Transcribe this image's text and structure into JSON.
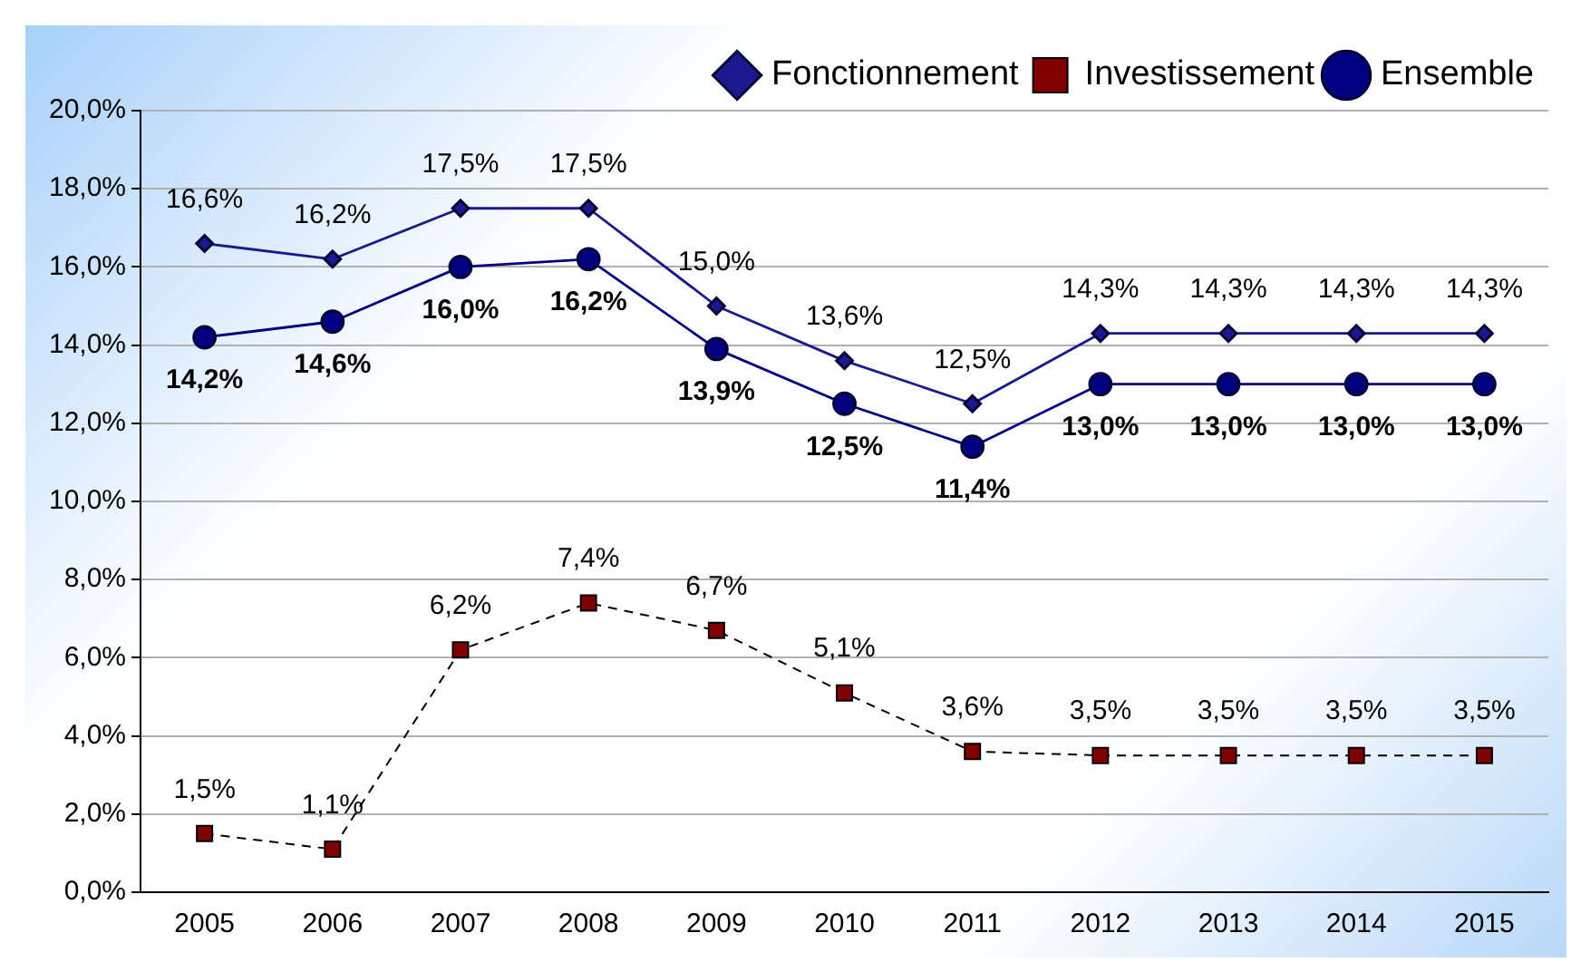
{
  "chart_data": {
    "type": "line",
    "categories": [
      "2005",
      "2006",
      "2007",
      "2008",
      "2009",
      "2010",
      "2011",
      "2012",
      "2013",
      "2014",
      "2015"
    ],
    "ylim": [
      0,
      20
    ],
    "yticks": [
      {
        "value": 0,
        "label": "0,0%"
      },
      {
        "value": 2,
        "label": "2,0%"
      },
      {
        "value": 4,
        "label": "4,0%"
      },
      {
        "value": 6,
        "label": "6,0%"
      },
      {
        "value": 8,
        "label": "8,0%"
      },
      {
        "value": 10,
        "label": "10,0%"
      },
      {
        "value": 12,
        "label": "12,0%"
      },
      {
        "value": 14,
        "label": "14,0%"
      },
      {
        "value": 16,
        "label": "16,0%"
      },
      {
        "value": 18,
        "label": "18,0%"
      },
      {
        "value": 20,
        "label": "20,0%"
      }
    ],
    "grid": "y",
    "legend": "top right",
    "series": [
      {
        "name": "Fonctionnement",
        "color": "#1a1a8c",
        "marker": "diamond",
        "line_style": "solid",
        "values": [
          16.6,
          16.2,
          17.5,
          17.5,
          15.0,
          13.6,
          12.5,
          14.3,
          14.3,
          14.3,
          14.3
        ],
        "value_labels": [
          "16,6%",
          "16,2%",
          "17,5%",
          "17,5%",
          "15,0%",
          "13,6%",
          "12,5%",
          "14,3%",
          "14,3%",
          "14,3%",
          "14,3%"
        ]
      },
      {
        "name": "Investissement",
        "color": "#800000",
        "marker": "square",
        "line_style": "dashed",
        "values": [
          1.5,
          1.1,
          6.2,
          7.4,
          6.7,
          5.1,
          3.6,
          3.5,
          3.5,
          3.5,
          3.5
        ],
        "value_labels": [
          "1,5%",
          "1,1%",
          "6,2%",
          "7,4%",
          "6,7%",
          "5,1%",
          "3,6%",
          "3,5%",
          "3,5%",
          "3,5%",
          "3,5%"
        ]
      },
      {
        "name": "Ensemble",
        "color": "#000080",
        "marker": "circle",
        "line_style": "solid",
        "values": [
          14.2,
          14.6,
          16.0,
          16.2,
          13.9,
          12.5,
          11.4,
          13.0,
          13.0,
          13.0,
          13.0
        ],
        "value_labels": [
          "14,2%",
          "14,6%",
          "16,0%",
          "16,2%",
          "13,9%",
          "12,5%",
          "11,4%",
          "13,0%",
          "13,0%",
          "13,0%",
          "13,0%"
        ]
      }
    ]
  }
}
